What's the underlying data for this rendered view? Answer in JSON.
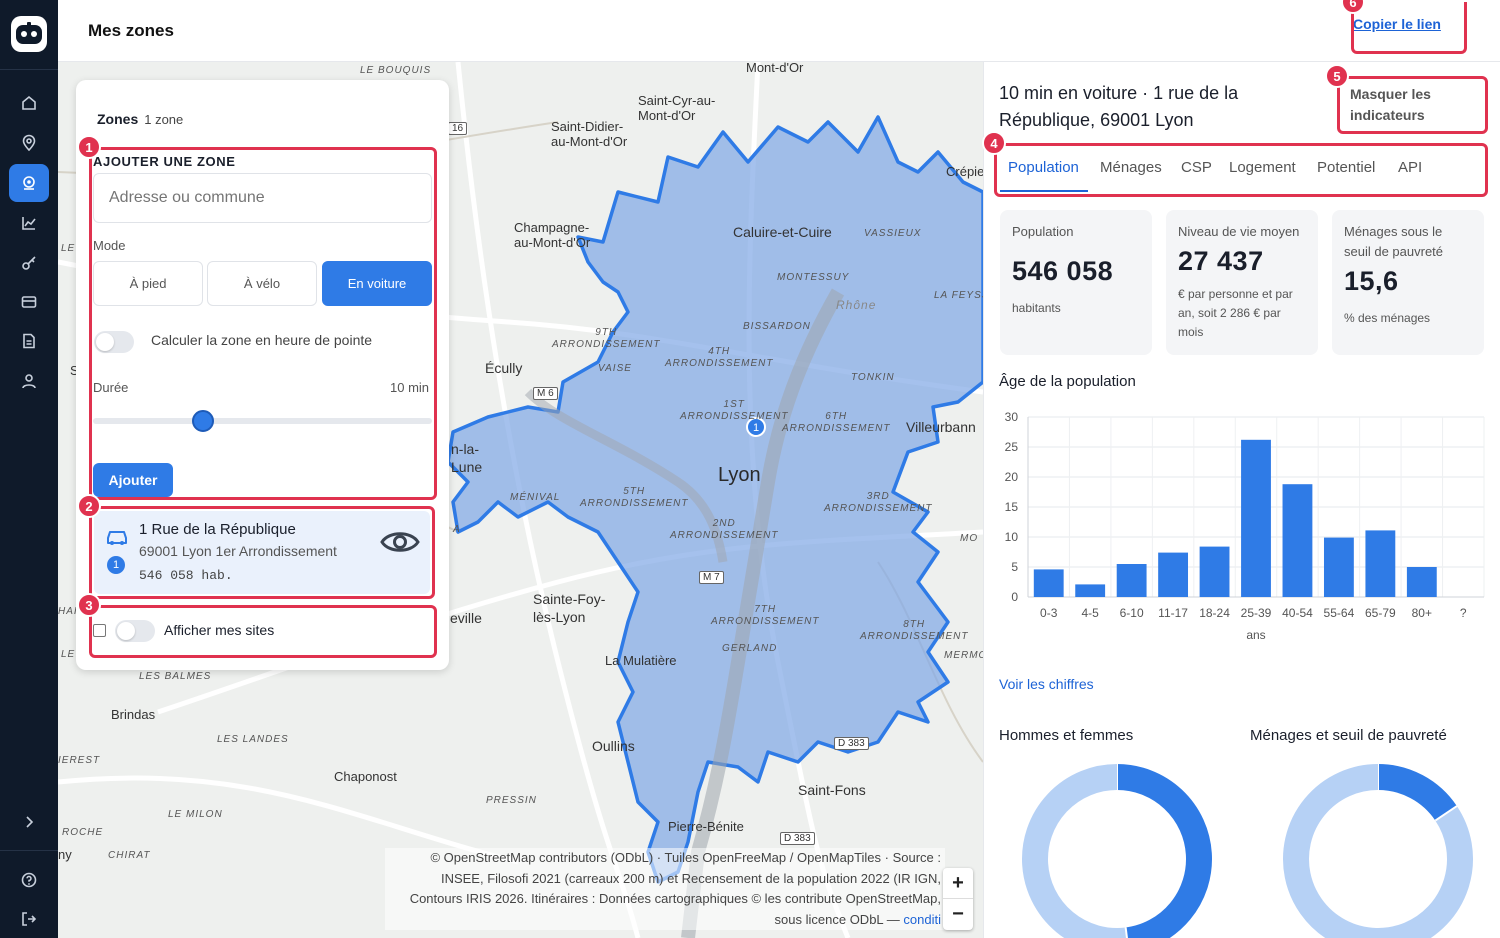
{
  "header": {
    "title": "Mes zones",
    "copy_link": "Copier le lien"
  },
  "sidebar": {
    "items": [
      {
        "icon": "home-icon",
        "active": false
      },
      {
        "icon": "map-pin-icon",
        "active": false
      },
      {
        "icon": "zone-icon",
        "active": true
      },
      {
        "icon": "chart-icon",
        "active": false
      },
      {
        "icon": "key-icon",
        "active": false
      },
      {
        "icon": "card-icon",
        "active": false
      },
      {
        "icon": "document-icon",
        "active": false
      },
      {
        "icon": "user-icon",
        "active": false
      }
    ],
    "bottom": [
      "chevron-right-icon",
      "help-icon",
      "logout-icon"
    ]
  },
  "zones_panel": {
    "title": "Zones",
    "count": "1 zone",
    "add_section": {
      "title": "AJOUTER UNE ZONE",
      "placeholder": "Adresse ou commune",
      "mode_label": "Mode",
      "modes": [
        "À pied",
        "À vélo",
        "En voiture"
      ],
      "selected_mode": "En voiture",
      "peak_label": "Calculer la zone en heure de pointe",
      "duration_label": "Durée",
      "duration_value": "10 min",
      "add_button": "Ajouter"
    },
    "zone": {
      "title": "1 Rue de la République",
      "subtitle": "69001 Lyon 1er Arrondissement",
      "population": "546 058 hab.",
      "number": "1"
    },
    "sites_label": "Afficher mes sites"
  },
  "badges": [
    "1",
    "2",
    "3",
    "4",
    "5",
    "6"
  ],
  "map": {
    "labels": {
      "lyon": "Lyon",
      "caluire": "Caluire-et-Cuire",
      "ecully": "Écully",
      "villeurbanne": "Villeurbann",
      "sainte_foy": "Sainte-Foy-\nlès-Lyon",
      "oullins": "Oullins",
      "saint_fons": "Saint-Fons",
      "chaponost": "Chaponost",
      "brindas": "Brindas",
      "la_mulatiere": "La Mulatière",
      "champagne": "Champagne-\nau-Mont-d'Or",
      "saint_didier": "Saint-Didier-\nau-Mont-d'Or",
      "saint_cyr": "Saint-Cyr-au-\nMont-d'Or",
      "mont_dor": "Mont-d'Or",
      "crepieux": "Crépie",
      "pierre_benite": "Pierre-Bénite",
      "neuville": "n-la-\nLune",
      "tassin": "eville",
      "le_bouquis": "LE BOUQUIS",
      "vassieux": "VASSIEUX",
      "montessuy": "MONTESSUY",
      "rhone": "Rhône",
      "la_feyssine": "LA FEYSS",
      "bissardon": "BISSARDON",
      "arr9": "9TH\nARRONDISSEMENT",
      "arr4": "4TH\nARRONDISSEMENT",
      "vaise": "VAISE",
      "tonkin": "TONKIN",
      "arr1": "1ST\nARRONDISSEMENT",
      "arr6": "6TH\nARRONDISSEMENT",
      "arr5": "5TH\nARRONDISSEMENT",
      "arr3": "3RD\nARRONDISSEMENT",
      "arr2": "2ND\nARRONDISSEMENT",
      "menival": "MÉNIVAL",
      "arr7": "7TH\nARRONDISSEMENT",
      "arr8": "8TH\nARRONDISSEMENT",
      "gerland": "GERLAND",
      "les_balmes": "LES BALMES",
      "les_landes": "LES LANDES",
      "pressin": "PRESSIN",
      "le_milon": "LE MILON",
      "chirat": "CHIRAT",
      "roche": "ROCHE",
      "ierest": "IEREST",
      "mermo": "MERMO",
      "mo": "MO",
      "ny": "ny",
      "le1": "LE",
      "le2": "LE",
      "s1": "S",
      "hai": "HAI",
      "a1": "A",
      "m6": "M 6",
      "m7": "M 7",
      "d383a": "D 383",
      "d383b": "D 383",
      "r16": "16"
    },
    "marker": "1",
    "attribution": "© OpenStreetMap contributors (ODbL) · Tuiles OpenFreeMap / OpenMapTiles · Source : INSEE, Filosofi 2021 (carreaux 200 m) et Recensement de la population 2022 (IR IGN, Contours IRIS 2026. Itinéraires : Données cartographiques © les contribute OpenStreetMap, sous licence ODbL —",
    "attribution_link": "conditi",
    "zoom_in": "+",
    "zoom_out": "−"
  },
  "right_panel": {
    "heading": "10 min en voiture · 1 rue de la République, 69001 Lyon",
    "hide_indicators": "Masquer les indicateurs",
    "tabs": [
      "Population",
      "Ménages",
      "CSP",
      "Logement",
      "Potentiel",
      "API"
    ],
    "active_tab": "Population",
    "kpis": [
      {
        "label": "Population",
        "value": "546 058",
        "unit": "habitants"
      },
      {
        "label": "Niveau de vie moyen",
        "value": "27 437",
        "unit": "€ par personne et par an, soit 2 286 € par mois"
      },
      {
        "label": "Ménages sous le seuil de pauvreté",
        "value": "15,6",
        "unit": "% des ménages"
      }
    ],
    "see_figures": "Voir les chiffres",
    "donut_titles": [
      "Hommes et femmes",
      "Ménages et seuil de pauvreté"
    ]
  },
  "chart_data": {
    "type": "bar",
    "title": "Âge de la population",
    "xlabel": "ans",
    "ylabel": "",
    "categories": [
      "0-3",
      "4-5",
      "6-10",
      "11-17",
      "18-24",
      "25-39",
      "40-54",
      "55-64",
      "65-79",
      "80+",
      "?"
    ],
    "values": [
      4.6,
      2.1,
      5.5,
      7.4,
      8.4,
      26.2,
      18.8,
      9.9,
      11.1,
      5.0,
      0
    ],
    "ylim": [
      0,
      30
    ],
    "yticks": [
      0,
      5,
      10,
      15,
      20,
      25,
      30
    ],
    "color": "#2f7be6",
    "grid": true
  },
  "donuts": [
    {
      "title": "Hommes et femmes",
      "fractions": [
        0.48,
        0.52
      ],
      "colors": [
        "#2f7be6",
        "#b6d1f5"
      ]
    },
    {
      "title": "Ménages et seuil de pauvreté",
      "fractions": [
        0.156,
        0.844
      ],
      "colors": [
        "#2f7be6",
        "#b6d1f5"
      ]
    }
  ]
}
